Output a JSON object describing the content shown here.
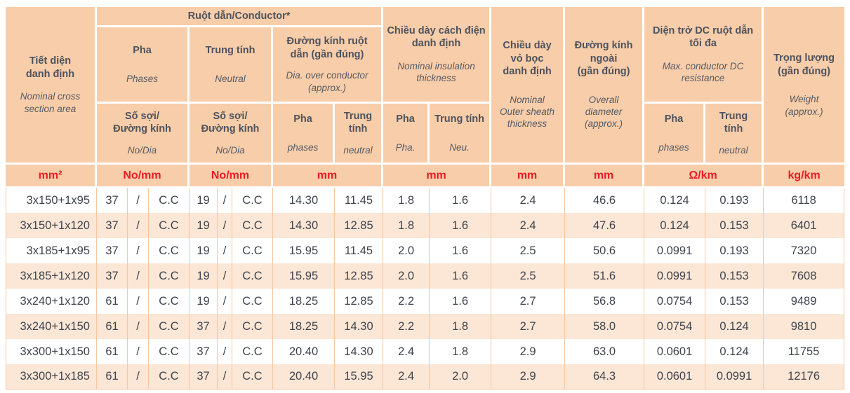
{
  "table": {
    "title_semantics": "Cable specification table (Vietnamese/English)",
    "header": {
      "nominal_cross_section": {
        "vi": "Tiết diện\ndanh định",
        "en": "Nominal cross\nsection area"
      },
      "conductor_group": {
        "label": "Ruột dẫn/Conductor*"
      },
      "phases": {
        "vi": "Pha",
        "en": "Phases"
      },
      "neutral": {
        "vi": "Trung tính",
        "en": "Neutral"
      },
      "no_dia_phase": {
        "vi": "Số sợi/\nĐường kính",
        "en": "No/Dia"
      },
      "no_dia_neutral": {
        "vi": "Số sợi/\nĐường kính",
        "en": "No/Dia"
      },
      "dia_over_conductor": {
        "vi": "Đường kính ruột\ndẫn (gần đúng)",
        "en": "Dia. over conductor\n(approx.)"
      },
      "dia_phase_sub": {
        "vi": "Pha",
        "en": "phases"
      },
      "dia_neutral_sub": {
        "vi": "Trung\ntính",
        "en": "neutral"
      },
      "insulation": {
        "vi": "Chiều dày cách điện\ndanh định",
        "en": "Nominal insulation\nthickness"
      },
      "ins_phase_sub": {
        "vi": "Pha",
        "en": "Pha."
      },
      "ins_neutral_sub": {
        "vi": "Trung tính",
        "en": "Neu."
      },
      "sheath": {
        "vi": "Chiều dày\nvỏ bọc\ndanh định",
        "en": "Nominal\nOuter sheath\nthickness"
      },
      "overall_diameter": {
        "vi": "Đường kính\nngoài\n(gần đúng)",
        "en": "Overall\ndiameter\n(approx.)"
      },
      "dc_resistance": {
        "vi": "Diện trở DC ruột dẫn\ntối đa",
        "en": "Max. conductor DC\nresistance"
      },
      "res_phase_sub": {
        "vi": "Pha",
        "en": "phases"
      },
      "res_neutral_sub": {
        "vi": "Trung\ntính",
        "en": "neutral"
      },
      "weight": {
        "vi": "Trọng lượng\n(gần đúng)",
        "en": "Weight\n(approx.)"
      }
    },
    "units": {
      "cross_section": "mm²",
      "phase_no_dia": "No/mm",
      "neutral_no_dia": "No/mm",
      "dia_over_conductor": "mm",
      "insulation": "mm",
      "sheath": "mm",
      "overall_diameter": "mm",
      "dc_resistance": "Ω/km",
      "weight": "kg/km"
    },
    "rows": [
      [
        "3x150+1x95",
        "37",
        "/",
        "C.C",
        "19",
        "/",
        "C.C",
        "14.30",
        "11.45",
        "1.8",
        "1.6",
        "2.4",
        "46.6",
        "0.124",
        "0.193",
        "6118"
      ],
      [
        "3x150+1x120",
        "37",
        "/",
        "C.C",
        "19",
        "/",
        "C.C",
        "14.30",
        "12.85",
        "1.8",
        "1.6",
        "2.4",
        "47.6",
        "0.124",
        "0.153",
        "6401"
      ],
      [
        "3x185+1x95",
        "37",
        "/",
        "C.C",
        "19",
        "/",
        "C.C",
        "15.95",
        "11.45",
        "2.0",
        "1.6",
        "2.5",
        "50.6",
        "0.0991",
        "0.193",
        "7320"
      ],
      [
        "3x185+1x120",
        "37",
        "/",
        "C.C",
        "19",
        "/",
        "C.C",
        "15.95",
        "12.85",
        "2.0",
        "1.6",
        "2.5",
        "51.6",
        "0.0991",
        "0.153",
        "7608"
      ],
      [
        "3x240+1x120",
        "61",
        "/",
        "C.C",
        "19",
        "/",
        "C.C",
        "18.25",
        "12.85",
        "2.2",
        "1.6",
        "2.7",
        "56.8",
        "0.0754",
        "0.153",
        "9489"
      ],
      [
        "3x240+1x150",
        "61",
        "/",
        "C.C",
        "37",
        "/",
        "C.C",
        "18.25",
        "14.30",
        "2.2",
        "1.8",
        "2.7",
        "58.0",
        "0.0754",
        "0.124",
        "9810"
      ],
      [
        "3x300+1x150",
        "61",
        "/",
        "C.C",
        "37",
        "/",
        "C.C",
        "20.40",
        "14.30",
        "2.4",
        "1.8",
        "2.9",
        "63.0",
        "0.0601",
        "0.124",
        "11755"
      ],
      [
        "3x300+1x185",
        "61",
        "/",
        "C.C",
        "37",
        "/",
        "C.C",
        "20.40",
        "15.95",
        "2.4",
        "2.0",
        "2.9",
        "64.3",
        "0.0601",
        "0.0991",
        "12176"
      ]
    ]
  },
  "colors": {
    "header_bg": "#f8cda9",
    "row_alt_bg": "#fce6d5",
    "grid_line": "#f5c7a2",
    "unit_text_red": "#ec1c24",
    "header_text": "#4d535e",
    "body_text": "#3e444e"
  }
}
